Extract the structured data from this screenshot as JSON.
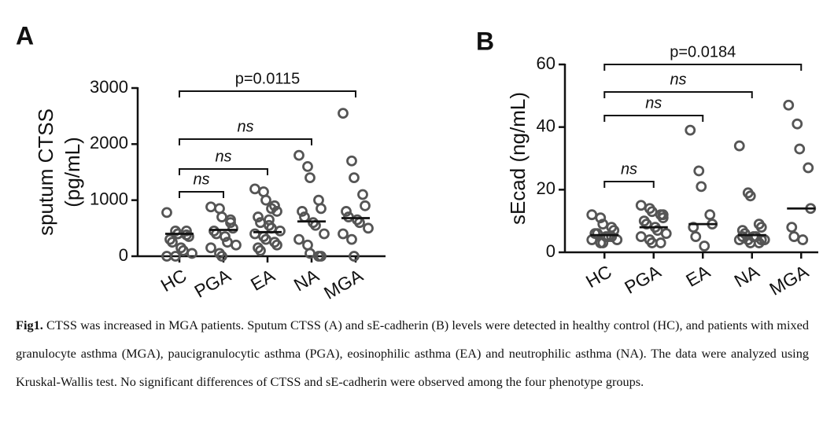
{
  "chart_data": [
    {
      "type": "dotplot",
      "panel": "A",
      "ylabel": [
        "sputum CTSS",
        "(pg/mL)"
      ],
      "categories": [
        "HC",
        "PGA",
        "EA",
        "NA",
        "MGA"
      ],
      "values": [
        [
          780,
          450,
          400,
          380,
          350,
          300,
          250,
          150,
          100,
          50,
          0,
          0,
          400,
          450
        ],
        [
          880,
          850,
          700,
          600,
          500,
          450,
          400,
          350,
          250,
          200,
          150,
          50,
          0,
          650
        ],
        [
          1200,
          1150,
          1000,
          900,
          800,
          700,
          600,
          550,
          500,
          450,
          400,
          350,
          300,
          250,
          200,
          150,
          100,
          650,
          850
        ],
        [
          1800,
          1600,
          1400,
          1000,
          850,
          800,
          700,
          600,
          550,
          400,
          300,
          200,
          50,
          0,
          0
        ],
        [
          2550,
          1700,
          1400,
          1100,
          900,
          800,
          700,
          650,
          600,
          500,
          400,
          300,
          0
        ]
      ],
      "medians": [
        400,
        470,
        430,
        620,
        680
      ],
      "ylim": [
        0,
        3000
      ],
      "yticks": [
        0,
        1000,
        2000,
        3000
      ],
      "comparisons": [
        {
          "from": "HC",
          "to": "PGA",
          "label": "ns"
        },
        {
          "from": "HC",
          "to": "EA",
          "label": "ns"
        },
        {
          "from": "HC",
          "to": "NA",
          "label": "ns"
        },
        {
          "from": "HC",
          "to": "MGA",
          "label": "p=0.0115"
        }
      ]
    },
    {
      "type": "dotplot",
      "panel": "B",
      "ylabel": "sEcad (ng/mL)",
      "categories": [
        "HC",
        "PGA",
        "EA",
        "NA",
        "MGA"
      ],
      "values": [
        [
          12,
          11,
          9,
          8,
          7,
          6,
          6,
          5,
          5,
          4,
          4,
          3,
          3,
          5
        ],
        [
          15,
          14,
          13,
          12,
          11,
          10,
          9,
          8,
          7,
          6,
          5,
          4,
          3,
          3,
          12
        ],
        [
          39,
          26,
          21,
          12,
          9,
          8,
          5,
          2
        ],
        [
          34,
          19,
          18,
          9,
          8,
          7,
          6,
          5,
          5,
          4,
          4,
          4,
          3,
          3,
          4,
          5
        ],
        [
          47,
          41,
          33,
          27,
          14,
          8,
          5,
          4
        ]
      ],
      "medians": [
        5.5,
        8,
        9,
        5.5,
        14
      ],
      "ylim": [
        0,
        60
      ],
      "yticks": [
        0,
        20,
        40,
        60
      ],
      "comparisons": [
        {
          "from": "HC",
          "to": "PGA",
          "label": "ns"
        },
        {
          "from": "HC",
          "to": "EA",
          "label": "ns"
        },
        {
          "from": "HC",
          "to": "NA",
          "label": "ns"
        },
        {
          "from": "HC",
          "to": "MGA",
          "label": "p=0.0184"
        }
      ]
    }
  ],
  "caption": {
    "label": "Fig1.",
    "text": "CTSS was increased in MGA patients. Sputum CTSS (A) and sE-cadherin (B) levels were detected in healthy control (HC), and patients with mixed granulocyte asthma (MGA), paucigranulocytic asthma (PGA), eosinophilic asthma (EA) and neutrophilic asthma (NA). The data were analyzed using Kruskal-Wallis test. No significant differences of CTSS and sE-cadherin were observed among the four phenotype groups."
  }
}
